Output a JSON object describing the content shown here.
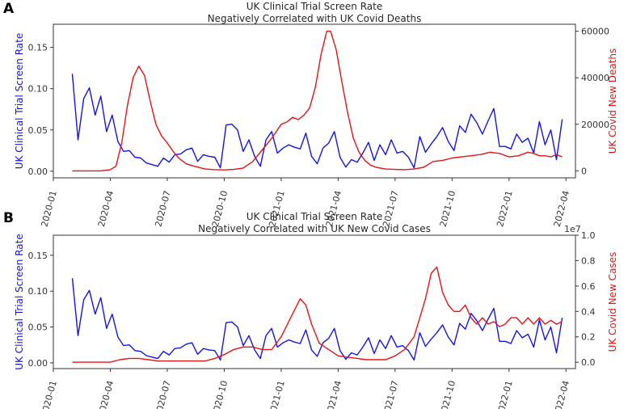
{
  "figure_labels": [
    "A",
    "B"
  ],
  "chart_data": [
    {
      "panel": "A",
      "type": "line",
      "title": "UK Clinical Trial Screen Rate",
      "subtitle": "Negatively Correlated with UK Covid Deaths",
      "xlabel": "",
      "x_ticks": [
        "2020-01",
        "2020-04",
        "2020-07",
        "2020-10",
        "2021-01",
        "2021-04",
        "2021-07",
        "2021-10",
        "2022-01",
        "2022-04"
      ],
      "x_range": [
        0,
        27.5
      ],
      "left_axis": {
        "label": "UK Clinical Trial Screen Rate",
        "color": "#1414e6",
        "ylim": [
          -0.008,
          0.178
        ],
        "ticks": [
          0.0,
          0.05,
          0.1,
          0.15
        ],
        "tick_labels": [
          "0.00",
          "0.05",
          "0.10",
          "0.15"
        ]
      },
      "right_axis": {
        "label": "UK Covid New Deaths",
        "color": "#e61414",
        "ylim": [
          -3000,
          63000
        ],
        "ticks": [
          0,
          20000,
          40000,
          60000
        ],
        "tick_labels": [
          "0",
          "20000",
          "40000",
          "60000"
        ]
      },
      "series": [
        {
          "name": "UK Clinical Trial Screen Rate",
          "axis": "left",
          "color": "#1414e6",
          "x": [
            1.0,
            1.3,
            1.6,
            1.9,
            2.2,
            2.5,
            2.8,
            3.1,
            3.4,
            3.7,
            4.0,
            4.3,
            4.6,
            4.9,
            5.2,
            5.5,
            5.8,
            6.1,
            6.4,
            6.7,
            7.0,
            7.3,
            7.6,
            7.9,
            8.2,
            8.5,
            8.8,
            9.1,
            9.4,
            9.7,
            10.0,
            10.3,
            10.6,
            10.9,
            11.2,
            11.5,
            11.8,
            12.1,
            12.4,
            12.7,
            13.0,
            13.3,
            13.6,
            13.9,
            14.2,
            14.5,
            14.8,
            15.1,
            15.4,
            15.7,
            16.0,
            16.3,
            16.6,
            16.9,
            17.2,
            17.5,
            17.8,
            18.1,
            18.4,
            18.7,
            19.0,
            19.3,
            19.6,
            19.9,
            20.2,
            20.5,
            20.8,
            21.1,
            21.4,
            21.7,
            22.0,
            22.3,
            22.6,
            22.9,
            23.2,
            23.5,
            23.8,
            24.1,
            24.4,
            24.7,
            25.0,
            25.3,
            25.6,
            25.9,
            26.2,
            26.5,
            26.8
          ],
          "values": [
            0.118,
            0.038,
            0.088,
            0.101,
            0.068,
            0.091,
            0.048,
            0.068,
            0.036,
            0.024,
            0.025,
            0.017,
            0.016,
            0.01,
            0.008,
            0.006,
            0.016,
            0.011,
            0.02,
            0.021,
            0.026,
            0.028,
            0.012,
            0.02,
            0.018,
            0.017,
            0.004,
            0.056,
            0.057,
            0.05,
            0.024,
            0.038,
            0.018,
            0.006,
            0.038,
            0.048,
            0.022,
            0.028,
            0.032,
            0.029,
            0.027,
            0.046,
            0.018,
            0.009,
            0.028,
            0.034,
            0.048,
            0.017,
            0.005,
            0.014,
            0.011,
            0.022,
            0.035,
            0.013,
            0.032,
            0.02,
            0.038,
            0.022,
            0.024,
            0.017,
            0.004,
            0.042,
            0.023,
            0.033,
            0.042,
            0.053,
            0.036,
            0.025,
            0.055,
            0.047,
            0.069,
            0.059,
            0.045,
            0.061,
            0.076,
            0.03,
            0.03,
            0.027,
            0.045,
            0.035,
            0.04,
            0.022,
            0.06,
            0.032,
            0.05,
            0.014,
            0.063
          ],
          "note": "series truncated to match drawn segments"
        },
        {
          "name": "UK Covid New Deaths",
          "axis": "right",
          "color": "#e61414",
          "x": [
            1.0,
            1.5,
            2.0,
            2.5,
            3.0,
            3.3,
            3.6,
            3.9,
            4.2,
            4.5,
            4.8,
            5.1,
            5.4,
            5.7,
            6.0,
            6.3,
            6.6,
            7.0,
            7.5,
            8.0,
            8.5,
            9.0,
            9.5,
            10.0,
            10.5,
            11.0,
            11.5,
            12.0,
            12.3,
            12.6,
            12.9,
            13.2,
            13.5,
            13.8,
            14.1,
            14.4,
            14.6,
            14.9,
            15.2,
            15.5,
            15.8,
            16.1,
            16.4,
            16.7,
            17.0,
            17.5,
            18.0,
            18.5,
            19.0,
            19.5,
            20.0,
            20.5,
            21.0,
            21.5,
            22.0,
            22.5,
            23.0,
            23.5,
            24.0,
            24.5,
            25.0,
            25.3,
            25.6,
            25.9,
            26.2,
            26.5,
            26.8
          ],
          "values": [
            0,
            0,
            0,
            0,
            500,
            2000,
            12000,
            28000,
            40000,
            45000,
            41000,
            30000,
            20000,
            15000,
            12000,
            8500,
            5500,
            3000,
            1800,
            800,
            500,
            400,
            600,
            1200,
            4000,
            9000,
            14000,
            20000,
            21000,
            23000,
            22000,
            24000,
            27000,
            36000,
            50000,
            60000,
            60000,
            52000,
            38000,
            25000,
            14000,
            8000,
            4500,
            2500,
            1500,
            800,
            600,
            500,
            800,
            1500,
            4000,
            4500,
            5500,
            6000,
            6500,
            7000,
            8000,
            7500,
            6000,
            6500,
            8000,
            7500,
            6500,
            6500,
            6000,
            7000,
            6000
          ],
          "note": "approximate"
        }
      ]
    },
    {
      "panel": "B",
      "type": "line",
      "title": "UK Clinical Trial Screen Rate",
      "subtitle": "Negatively Correlated with UK New Covid Cases",
      "xlabel": "",
      "x_ticks": [
        "2020-01",
        "2020-04",
        "2020-07",
        "2020-10",
        "2021-01",
        "2021-04",
        "2021-07",
        "2021-10",
        "2022-01",
        "2022-04"
      ],
      "x_range": [
        0,
        27.5
      ],
      "left_axis": {
        "label": "UK Clinical Trial Screen Rate",
        "color": "#1414e6",
        "ylim": [
          -0.008,
          0.178
        ],
        "ticks": [
          0.0,
          0.05,
          0.1,
          0.15
        ],
        "tick_labels": [
          "0.00",
          "0.05",
          "0.10",
          "0.15"
        ]
      },
      "right_axis": {
        "label": "UK Covid New Cases",
        "color": "#e61414",
        "ylim": [
          -0.05,
          1.0
        ],
        "ticks": [
          0.0,
          0.2,
          0.4,
          0.6,
          0.8,
          1.0
        ],
        "tick_labels": [
          "0.0",
          "0.2",
          "0.4",
          "0.6",
          "0.8",
          "1.0"
        ],
        "scale_label": "1e7"
      },
      "series": [
        {
          "name": "UK Clinical Trial Screen Rate",
          "axis": "left",
          "color": "#1414e6",
          "x": [
            1.0,
            1.3,
            1.6,
            1.9,
            2.2,
            2.5,
            2.8,
            3.1,
            3.4,
            3.7,
            4.0,
            4.3,
            4.6,
            4.9,
            5.2,
            5.5,
            5.8,
            6.1,
            6.4,
            6.7,
            7.0,
            7.3,
            7.6,
            7.9,
            8.2,
            8.5,
            8.8,
            9.1,
            9.4,
            9.7,
            10.0,
            10.3,
            10.6,
            10.9,
            11.2,
            11.5,
            11.8,
            12.1,
            12.4,
            12.7,
            13.0,
            13.3,
            13.6,
            13.9,
            14.2,
            14.5,
            14.8,
            15.1,
            15.4,
            15.7,
            16.0,
            16.3,
            16.6,
            16.9,
            17.2,
            17.5,
            17.8,
            18.1,
            18.4,
            18.7,
            19.0,
            19.3,
            19.6,
            19.9,
            20.2,
            20.5,
            20.8,
            21.1,
            21.4,
            21.7,
            22.0,
            22.3,
            22.6,
            22.9,
            23.2,
            23.5,
            23.8,
            24.1,
            24.4,
            24.7,
            25.0,
            25.3,
            25.6,
            25.9,
            26.2,
            26.5,
            26.8
          ],
          "values": [
            0.118,
            0.038,
            0.088,
            0.101,
            0.068,
            0.091,
            0.048,
            0.068,
            0.036,
            0.024,
            0.025,
            0.017,
            0.016,
            0.01,
            0.008,
            0.006,
            0.016,
            0.011,
            0.02,
            0.021,
            0.026,
            0.028,
            0.012,
            0.02,
            0.018,
            0.017,
            0.004,
            0.056,
            0.057,
            0.05,
            0.024,
            0.038,
            0.018,
            0.006,
            0.038,
            0.048,
            0.022,
            0.028,
            0.032,
            0.029,
            0.027,
            0.046,
            0.018,
            0.009,
            0.028,
            0.034,
            0.048,
            0.017,
            0.005,
            0.014,
            0.011,
            0.022,
            0.035,
            0.013,
            0.032,
            0.02,
            0.038,
            0.022,
            0.024,
            0.017,
            0.004,
            0.042,
            0.023,
            0.033,
            0.042,
            0.053,
            0.036,
            0.025,
            0.055,
            0.047,
            0.069,
            0.059,
            0.045,
            0.061,
            0.076,
            0.03,
            0.03,
            0.027,
            0.045,
            0.035,
            0.04,
            0.022,
            0.06,
            0.032,
            0.05,
            0.014,
            0.063
          ],
          "note": "approximate"
        },
        {
          "name": "UK Covid New Cases",
          "axis": "right",
          "color": "#e61414",
          "x": [
            1.0,
            2.0,
            3.0,
            3.5,
            4.0,
            4.5,
            5.0,
            5.5,
            6.0,
            7.0,
            8.0,
            8.5,
            9.0,
            9.5,
            10.0,
            10.5,
            11.0,
            11.5,
            12.0,
            12.5,
            13.0,
            13.3,
            13.6,
            14.0,
            14.5,
            15.0,
            15.5,
            16.0,
            16.5,
            17.0,
            17.5,
            18.0,
            18.5,
            19.0,
            19.3,
            19.6,
            19.9,
            20.2,
            20.5,
            20.8,
            21.1,
            21.4,
            21.7,
            22.0,
            22.3,
            22.6,
            22.9,
            23.2,
            23.5,
            23.8,
            24.1,
            24.4,
            24.7,
            25.0,
            25.3,
            25.6,
            25.9,
            26.2,
            26.5,
            26.8
          ],
          "values": [
            0,
            0,
            0,
            0.02,
            0.03,
            0.03,
            0.02,
            0.01,
            0.01,
            0.01,
            0.01,
            0.03,
            0.06,
            0.1,
            0.12,
            0.12,
            0.1,
            0.1,
            0.2,
            0.35,
            0.5,
            0.45,
            0.3,
            0.15,
            0.1,
            0.05,
            0.04,
            0.03,
            0.02,
            0.02,
            0.02,
            0.05,
            0.1,
            0.2,
            0.35,
            0.5,
            0.7,
            0.75,
            0.55,
            0.45,
            0.4,
            0.4,
            0.45,
            0.35,
            0.3,
            0.35,
            0.3,
            0.32,
            0.28,
            0.3,
            0.35,
            0.35,
            0.3,
            0.35,
            0.3,
            0.35,
            0.3,
            0.33,
            0.3,
            0.32
          ],
          "note": "approximate"
        }
      ]
    }
  ]
}
